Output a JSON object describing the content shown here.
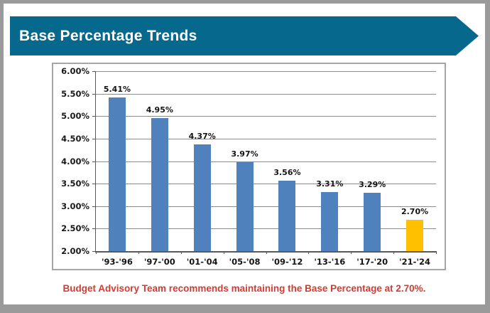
{
  "banner": {
    "title": "Base Percentage Trends",
    "bg_color": "#06688C",
    "text_color": "#FFFFFF"
  },
  "chart_data": {
    "type": "bar",
    "title": "Base Percentage Trends",
    "categories": [
      "'93-'96",
      "'97-'00",
      "'01-'04",
      "'05-'08",
      "'09-'12",
      "'13-'16",
      "'17-'20",
      "'21-'24"
    ],
    "values": [
      5.41,
      4.95,
      4.37,
      3.97,
      3.56,
      3.31,
      3.29,
      2.7
    ],
    "data_labels": [
      "5.41%",
      "4.95%",
      "4.37%",
      "3.97%",
      "3.56%",
      "3.31%",
      "3.29%",
      "2.70%"
    ],
    "bar_colors": [
      "#4F81BD",
      "#4F81BD",
      "#4F81BD",
      "#4F81BD",
      "#4F81BD",
      "#4F81BD",
      "#4F81BD",
      "#FFC000"
    ],
    "highlight_index": 7,
    "xlabel": "",
    "ylabel": "",
    "ylim": [
      2.0,
      6.0
    ],
    "ytick_step": 0.5,
    "ytick_labels": [
      "6.00%",
      "5.50%",
      "5.00%",
      "4.50%",
      "4.00%",
      "3.50%",
      "3.00%",
      "2.50%",
      "2.00%"
    ],
    "grid": true,
    "legend_position": "none"
  },
  "footer": {
    "note": "Budget Advisory Team recommends maintaining the Base Percentage at 2.70%.",
    "color": "#D23B33"
  }
}
